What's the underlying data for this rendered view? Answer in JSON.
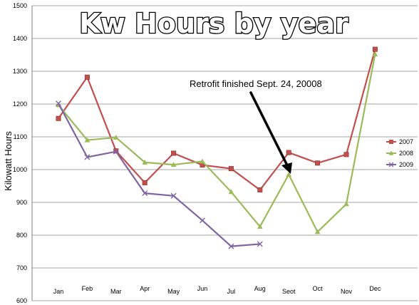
{
  "chart_data": {
    "type": "line",
    "title": "Kw Hours by year",
    "ylabel": "Kilowatt Hours",
    "xlabel": "",
    "categories": [
      "Jan",
      "Feb",
      "Mar",
      "Apr",
      "May",
      "Jun",
      "Jul",
      "Aug",
      "Seot",
      "Oct",
      "Nov",
      "Dec"
    ],
    "ylim": [
      600,
      1500
    ],
    "yticks": [
      600,
      700,
      800,
      900,
      1000,
      1100,
      1200,
      1300,
      1400,
      1500
    ],
    "grid": true,
    "legend_position": "right",
    "annotation": "Retrofit finished Sept. 24, 20008",
    "series": [
      {
        "name": "2007",
        "color": "#c0504d",
        "marker": "square",
        "values": [
          1156,
          1282,
          1057,
          960,
          1050,
          1014,
          1003,
          938,
          1052,
          1020,
          1046,
          1367
        ]
      },
      {
        "name": "2008",
        "color": "#9bbb59",
        "marker": "triangle",
        "values": [
          1197,
          1090,
          1098,
          1022,
          1015,
          1025,
          932,
          826,
          985,
          810,
          895,
          1352
        ]
      },
      {
        "name": "2009",
        "color": "#8064a2",
        "marker": "x",
        "values": [
          1202,
          1038,
          1055,
          928,
          920,
          845,
          766,
          773,
          null,
          null,
          null,
          null
        ]
      }
    ]
  }
}
